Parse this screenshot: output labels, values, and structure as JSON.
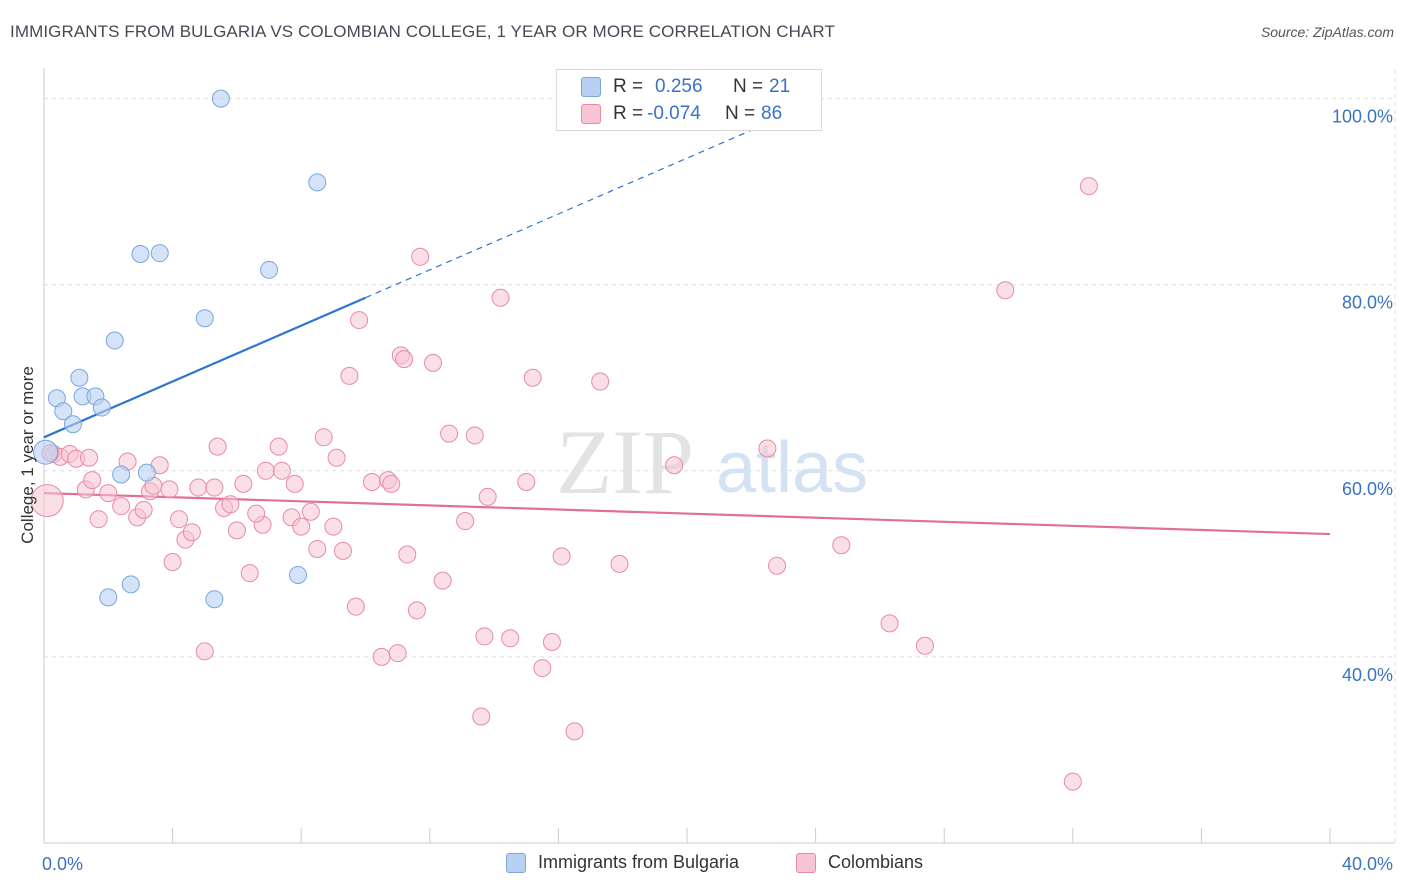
{
  "header": {
    "title": "IMMIGRANTS FROM BULGARIA VS COLOMBIAN COLLEGE, 1 YEAR OR MORE CORRELATION CHART",
    "source": "Source: ZipAtlas.com"
  },
  "watermark": {
    "zip": "ZIP",
    "atlas": "atlas"
  },
  "colors": {
    "blue_fill": "#b8d1f3",
    "blue_stroke": "#7aa6de",
    "blue_line": "#2f74d0",
    "pink_fill": "#f7c4d3",
    "pink_stroke": "#e88aa8",
    "pink_line": "#e0709a",
    "value_text": "#3a72c4",
    "grid": "#dddddd"
  },
  "legend": {
    "rows": [
      {
        "r_label": "R =",
        "r_value": "0.256",
        "n_label": "N =",
        "n_value": "21"
      },
      {
        "r_label": "R =",
        "r_value": "-0.074",
        "n_label": "N =",
        "n_value": "86"
      }
    ]
  },
  "bottom_legend": {
    "series1": "Immigrants from Bulgaria",
    "series2": "Colombians"
  },
  "chart_data": {
    "type": "scatter",
    "title": "IMMIGRANTS FROM BULGARIA VS COLOMBIAN COLLEGE, 1 YEAR OR MORE CORRELATION CHART",
    "xlabel": "",
    "ylabel": "College, 1 year or more",
    "xlim": [
      0,
      40
    ],
    "ylim": [
      20,
      102
    ],
    "x_tick_labels": [
      "0.0%",
      "40.0%"
    ],
    "y_ticks": [
      40,
      60,
      80,
      100
    ],
    "y_tick_labels": [
      "40.0%",
      "60.0%",
      "80.0%",
      "100.0%"
    ],
    "grid": true,
    "series": [
      {
        "name": "Immigrants from Bulgaria",
        "r": 0.256,
        "n": 21,
        "points": [
          [
            0.05,
            62.0
          ],
          [
            0.4,
            67.8
          ],
          [
            0.6,
            66.4
          ],
          [
            0.9,
            65.0
          ],
          [
            1.1,
            70.0
          ],
          [
            1.2,
            68.0
          ],
          [
            1.6,
            68.0
          ],
          [
            1.8,
            66.8
          ],
          [
            2.2,
            74.0
          ],
          [
            2.4,
            59.6
          ],
          [
            3.0,
            83.3
          ],
          [
            3.6,
            83.4
          ],
          [
            3.2,
            59.8
          ],
          [
            5.0,
            76.4
          ],
          [
            5.5,
            100.0
          ],
          [
            7.0,
            81.6
          ],
          [
            8.5,
            91.0
          ],
          [
            2.0,
            46.4
          ],
          [
            2.7,
            47.8
          ],
          [
            5.3,
            46.2
          ],
          [
            7.9,
            48.8
          ]
        ],
        "trend": {
          "x": [
            0,
            10
          ],
          "y": [
            63.6,
            78.6
          ]
        },
        "trend_dashed": {
          "x": [
            10,
            22
          ],
          "y": [
            78.6,
            96.6
          ]
        }
      },
      {
        "name": "Colombians",
        "r": -0.074,
        "n": 86,
        "points": [
          [
            0.1,
            56.8
          ],
          [
            0.3,
            61.8
          ],
          [
            0.5,
            61.5
          ],
          [
            0.8,
            61.8
          ],
          [
            1.0,
            61.3
          ],
          [
            1.3,
            58.0
          ],
          [
            1.5,
            59.0
          ],
          [
            1.7,
            54.8
          ],
          [
            2.0,
            57.6
          ],
          [
            2.4,
            56.2
          ],
          [
            2.6,
            61.0
          ],
          [
            2.9,
            55.0
          ],
          [
            3.1,
            55.8
          ],
          [
            3.3,
            57.8
          ],
          [
            3.6,
            60.6
          ],
          [
            3.9,
            58.0
          ],
          [
            4.0,
            50.2
          ],
          [
            4.2,
            54.8
          ],
          [
            4.4,
            52.6
          ],
          [
            4.6,
            53.4
          ],
          [
            4.8,
            58.2
          ],
          [
            5.0,
            40.6
          ],
          [
            5.3,
            58.2
          ],
          [
            5.4,
            62.6
          ],
          [
            5.6,
            56.0
          ],
          [
            5.8,
            56.4
          ],
          [
            6.0,
            53.6
          ],
          [
            6.2,
            58.6
          ],
          [
            6.4,
            49.0
          ],
          [
            6.8,
            54.2
          ],
          [
            6.9,
            60.0
          ],
          [
            7.3,
            62.6
          ],
          [
            7.4,
            60.0
          ],
          [
            7.7,
            55.0
          ],
          [
            7.8,
            58.6
          ],
          [
            8.0,
            54.0
          ],
          [
            8.3,
            55.6
          ],
          [
            8.5,
            51.6
          ],
          [
            8.7,
            63.6
          ],
          [
            9.0,
            54.0
          ],
          [
            9.1,
            61.4
          ],
          [
            9.3,
            51.4
          ],
          [
            9.5,
            70.2
          ],
          [
            9.7,
            45.4
          ],
          [
            9.8,
            76.2
          ],
          [
            10.2,
            58.8
          ],
          [
            10.5,
            40.0
          ],
          [
            10.7,
            59.0
          ],
          [
            11.0,
            40.4
          ],
          [
            11.1,
            72.4
          ],
          [
            11.2,
            72.0
          ],
          [
            11.3,
            51.0
          ],
          [
            11.6,
            45.0
          ],
          [
            11.7,
            83.0
          ],
          [
            12.1,
            71.6
          ],
          [
            12.4,
            48.2
          ],
          [
            12.6,
            64.0
          ],
          [
            13.1,
            54.6
          ],
          [
            13.4,
            63.8
          ],
          [
            13.6,
            33.6
          ],
          [
            13.7,
            42.2
          ],
          [
            13.8,
            57.2
          ],
          [
            14.2,
            78.6
          ],
          [
            14.5,
            42.0
          ],
          [
            15.0,
            58.8
          ],
          [
            15.2,
            70.0
          ],
          [
            15.5,
            38.8
          ],
          [
            15.8,
            41.6
          ],
          [
            16.1,
            50.8
          ],
          [
            16.5,
            32.0
          ],
          [
            17.3,
            69.6
          ],
          [
            17.9,
            50.0
          ],
          [
            19.6,
            60.6
          ],
          [
            22.5,
            62.4
          ],
          [
            22.8,
            49.8
          ],
          [
            24.8,
            52.0
          ],
          [
            26.3,
            43.6
          ],
          [
            27.4,
            41.2
          ],
          [
            29.9,
            79.4
          ],
          [
            32.5,
            90.6
          ],
          [
            32.0,
            26.6
          ],
          [
            0.2,
            61.9
          ],
          [
            1.4,
            61.4
          ],
          [
            3.4,
            58.4
          ],
          [
            6.6,
            55.4
          ],
          [
            10.8,
            58.6
          ]
        ],
        "trend": {
          "x": [
            0,
            40
          ],
          "y": [
            57.6,
            53.2
          ]
        }
      }
    ]
  }
}
